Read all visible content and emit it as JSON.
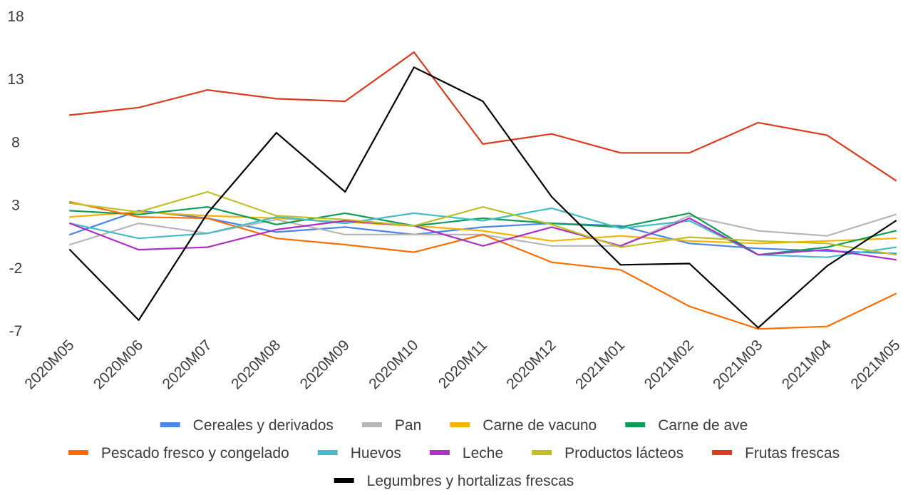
{
  "chart_data": {
    "type": "line",
    "title": "",
    "xlabel": "",
    "ylabel": "",
    "ylim": [
      -7,
      18
    ],
    "yticks": [
      18,
      13,
      8,
      3,
      -2,
      -7
    ],
    "grid": false,
    "legend_position": "bottom",
    "x": [
      "2020M05",
      "2020M06",
      "2020M07",
      "2020M08",
      "2020M09",
      "2020M10",
      "2020M11",
      "2020M12",
      "2021M01",
      "2021M02",
      "2021M03",
      "2021M04",
      "2021M05"
    ],
    "series": [
      {
        "name": "Cereales y derivados",
        "color": "#4a86e8",
        "values": [
          0.6,
          2.5,
          1.9,
          0.8,
          1.2,
          0.6,
          1.2,
          1.5,
          1.3,
          -0.1,
          -0.5,
          -0.7,
          -0.9
        ]
      },
      {
        "name": "Pan",
        "color": "#b7b7b7",
        "values": [
          -0.2,
          1.5,
          0.7,
          1.8,
          0.6,
          0.6,
          0.6,
          -0.3,
          -0.3,
          2.1,
          0.9,
          0.5,
          2.2
        ]
      },
      {
        "name": "Carne de vacuno",
        "color": "#f4b400",
        "values": [
          2.0,
          2.4,
          2.1,
          1.9,
          1.6,
          1.3,
          0.9,
          0.1,
          0.5,
          0.1,
          -0.1,
          0.1,
          0.3
        ]
      },
      {
        "name": "Carne de ave",
        "color": "#0f9d58",
        "values": [
          2.5,
          2.2,
          2.8,
          1.4,
          2.3,
          1.3,
          1.9,
          1.5,
          1.2,
          2.3,
          -1.0,
          -0.4,
          0.9
        ]
      },
      {
        "name": "Pescado fresco y congelado",
        "color": "#ff6d00",
        "values": [
          3.2,
          2.0,
          1.9,
          0.3,
          -0.2,
          -0.8,
          0.6,
          -1.6,
          -2.2,
          -5.1,
          -6.9,
          -6.7,
          -4.1
        ]
      },
      {
        "name": "Huevos",
        "color": "#46bdc6",
        "values": [
          1.5,
          0.3,
          0.7,
          2.0,
          1.5,
          2.3,
          1.7,
          2.7,
          1.1,
          1.7,
          -1.0,
          -1.2,
          -0.4
        ]
      },
      {
        "name": "Leche",
        "color": "#ab30c4",
        "values": [
          1.5,
          -0.6,
          -0.4,
          1.0,
          1.7,
          1.3,
          -0.3,
          1.2,
          -0.3,
          1.9,
          -1.0,
          -0.6,
          -1.4
        ]
      },
      {
        "name": "Productos lácteos",
        "color": "#bfbf26",
        "values": [
          3.1,
          2.4,
          4.0,
          2.1,
          1.8,
          1.3,
          2.8,
          1.4,
          -0.4,
          0.4,
          0.1,
          -0.1,
          -1.0
        ]
      },
      {
        "name": "Frutas frescas",
        "color": "#db3c1f",
        "values": [
          10.1,
          10.7,
          12.1,
          11.4,
          11.2,
          15.1,
          7.8,
          8.6,
          7.1,
          7.1,
          9.5,
          8.5,
          4.9
        ]
      },
      {
        "name": "Legumbres y hortalizas frescas",
        "color": "#000000",
        "values": [
          -0.6,
          -6.2,
          2.3,
          8.7,
          4.0,
          13.9,
          11.2,
          3.6,
          -1.8,
          -1.7,
          -6.8,
          -1.9,
          1.7
        ]
      }
    ]
  }
}
